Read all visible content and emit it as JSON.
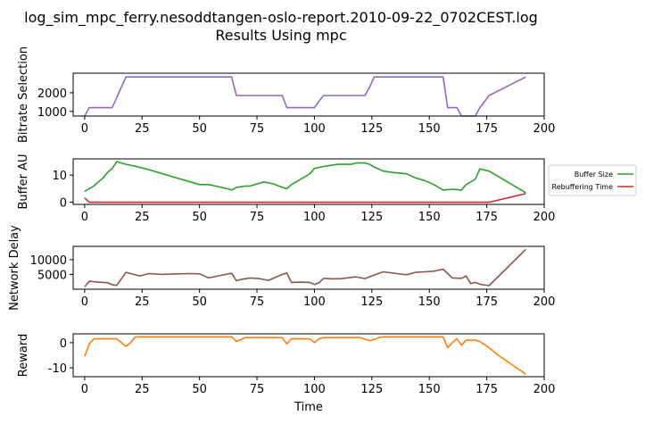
{
  "title_line1": "log_sim_mpc_ferry.nesoddtangen-oslo-report.2010-09-22_0702CEST.log",
  "title_line2": "Results Using mpc",
  "chart_data": [
    {
      "type": "line",
      "ylabel": "Bitrate Selection",
      "xlim": [
        -5,
        200
      ],
      "ylim": [
        750,
        3050
      ],
      "xticks": [
        0,
        25,
        50,
        75,
        100,
        125,
        150,
        175,
        200
      ],
      "yticks": [
        1000,
        2000
      ],
      "series": [
        {
          "color": "#9467bd",
          "x": [
            0,
            2,
            4,
            6,
            8,
            10,
            12,
            18,
            20,
            64,
            66,
            86,
            88,
            98,
            100,
            102,
            104,
            122,
            124,
            126,
            128,
            156,
            158,
            162,
            164,
            170,
            172,
            176,
            192
          ],
          "y": [
            750,
            1200,
            1200,
            1200,
            1200,
            1200,
            1200,
            2850,
            2850,
            2850,
            1850,
            1850,
            1200,
            1200,
            1200,
            1550,
            1850,
            1850,
            2300,
            2850,
            2850,
            2850,
            1200,
            1200,
            750,
            750,
            1200,
            1850,
            2850
          ]
        }
      ]
    },
    {
      "type": "line",
      "ylabel": "Buffer AU",
      "xlim": [
        -5,
        200
      ],
      "ylim": [
        -0.8,
        16
      ],
      "xticks": [
        0,
        25,
        50,
        75,
        100,
        125,
        150,
        175,
        200
      ],
      "yticks": [
        0,
        10
      ],
      "legend": {
        "placement": "outside-right",
        "entries": [
          "Buffer Size",
          "Rebuffering Time"
        ]
      },
      "series": [
        {
          "name": "Buffer Size",
          "color": "#2ca02c",
          "x": [
            0,
            2,
            4,
            6,
            8,
            10,
            12,
            14,
            18,
            22,
            28,
            34,
            40,
            46,
            50,
            54,
            58,
            62,
            64,
            66,
            70,
            72,
            74,
            78,
            82,
            86,
            88,
            90,
            94,
            98,
            100,
            104,
            110,
            116,
            118,
            120,
            122,
            124,
            126,
            130,
            134,
            140,
            144,
            148,
            152,
            156,
            160,
            164,
            166,
            168,
            170,
            172,
            176,
            180,
            192
          ],
          "y": [
            4,
            5,
            6,
            7.5,
            9,
            11,
            12.5,
            15,
            14,
            13.3,
            12,
            10.5,
            9,
            7.5,
            6.5,
            6.5,
            5.8,
            5,
            4.5,
            5.5,
            6,
            6,
            6.5,
            7.5,
            6.8,
            5.5,
            5,
            6.5,
            8.5,
            10.5,
            12.5,
            13.2,
            14,
            14,
            14.5,
            14.5,
            14.5,
            14,
            13,
            11.5,
            11,
            10.5,
            9,
            8,
            6.5,
            4.5,
            4.8,
            4.5,
            6.5,
            7.5,
            8.5,
            12.3,
            11.5,
            9.5,
            3.5
          ]
        },
        {
          "name": "Rebuffering Time",
          "color": "#d62728",
          "x": [
            0,
            2,
            4,
            100,
            176,
            192
          ],
          "y": [
            1.6,
            0,
            0,
            0,
            0,
            3.2
          ]
        }
      ]
    },
    {
      "type": "line",
      "ylabel": "Network Delay",
      "xlim": [
        -5,
        200
      ],
      "ylim": [
        0,
        14500
      ],
      "xticks": [
        0,
        25,
        50,
        75,
        100,
        125,
        150,
        175,
        200
      ],
      "yticks": [
        5000,
        10000
      ],
      "series": [
        {
          "color": "#8c564b",
          "x": [
            0,
            2,
            6,
            10,
            12,
            14,
            18,
            24,
            28,
            34,
            40,
            46,
            50,
            54,
            58,
            64,
            66,
            68,
            72,
            76,
            80,
            86,
            88,
            90,
            94,
            98,
            100,
            102,
            104,
            108,
            112,
            116,
            118,
            122,
            126,
            130,
            136,
            140,
            144,
            148,
            152,
            156,
            160,
            164,
            166,
            168,
            170,
            172,
            176,
            192
          ],
          "y": [
            800,
            2700,
            2400,
            2200,
            1500,
            1300,
            5700,
            4500,
            5300,
            5000,
            5200,
            5300,
            5200,
            3800,
            4500,
            5400,
            2900,
            3300,
            3800,
            3600,
            3000,
            5000,
            5500,
            2300,
            2400,
            2300,
            1600,
            2200,
            3700,
            3500,
            3600,
            4000,
            4200,
            3600,
            4800,
            5900,
            5300,
            4900,
            5700,
            5900,
            6100,
            6800,
            3800,
            3700,
            4500,
            1900,
            2300,
            1700,
            1200,
            13500
          ]
        }
      ]
    },
    {
      "type": "line",
      "ylabel": "Reward",
      "xlabel": "Time",
      "xlim": [
        -5,
        200
      ],
      "ylim": [
        -13.5,
        3.5
      ],
      "xticks": [
        0,
        25,
        50,
        75,
        100,
        125,
        150,
        175,
        200
      ],
      "yticks": [
        -10,
        0
      ],
      "series": [
        {
          "color": "#ff7f0e",
          "x": [
            0,
            2,
            4,
            6,
            10,
            12,
            14,
            18,
            20,
            22,
            24,
            64,
            66,
            70,
            72,
            86,
            88,
            90,
            94,
            98,
            100,
            102,
            104,
            108,
            112,
            116,
            120,
            124,
            126,
            128,
            130,
            134,
            156,
            158,
            160,
            162,
            164,
            166,
            168,
            170,
            172,
            176,
            180,
            192
          ],
          "y": [
            -5.5,
            -0.5,
            1.5,
            1.5,
            1.5,
            1.5,
            1.5,
            -1.5,
            0,
            2.3,
            2.3,
            2.3,
            0.5,
            2,
            2,
            2,
            -0.5,
            1.5,
            1.5,
            1.5,
            0,
            1.5,
            2,
            2,
            2,
            2,
            2,
            0.8,
            1.2,
            2,
            2.3,
            2.3,
            2.3,
            -2,
            0,
            1.5,
            -1,
            1,
            1,
            1,
            0.5,
            -2,
            -5,
            -12.5
          ]
        }
      ]
    }
  ]
}
